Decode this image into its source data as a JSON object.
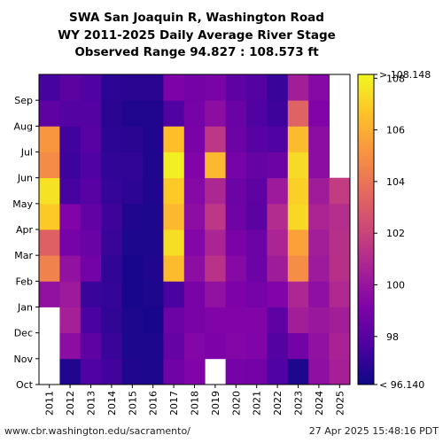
{
  "chart_data": {
    "type": "heatmap",
    "title_lines": [
      "SWA San Joaquin R, Washington Road",
      "WY 2011-2025 Daily Average River Stage",
      "Observed Range 94.827 : 108.573 ft"
    ],
    "x_categories": [
      "2011",
      "2012",
      "2013",
      "2014",
      "2015",
      "2016",
      "2017",
      "2018",
      "2019",
      "2020",
      "2021",
      "2022",
      "2023",
      "2024",
      "2025"
    ],
    "y_months": [
      "Oct",
      "Nov",
      "Dec",
      "Jan",
      "Feb",
      "Mar",
      "Apr",
      "May",
      "Jun",
      "Jul",
      "Aug",
      "Sep"
    ],
    "colorbar": {
      "min": 96.14,
      "max": 108.148,
      "ticks": [
        98,
        100,
        102,
        104,
        106,
        108
      ],
      "top_label": "> 108.148",
      "bottom_label": "< 96.140",
      "colormap": "plasma"
    },
    "monthly_mean_stage_ft": [
      [
        null,
        null,
        null,
        99.8,
        104.5,
        103.2,
        106.8,
        107.5,
        104.8,
        105.2,
        98.2,
        97.5
      ],
      [
        96.6,
        99.6,
        100.5,
        100.2,
        99.8,
        98.9,
        99.2,
        97.5,
        97.3,
        97.4,
        97.9,
        98.1
      ],
      [
        97.8,
        98.2,
        97.6,
        97.2,
        98.8,
        98.5,
        98.3,
        98.0,
        97.8,
        98.0,
        97.9,
        97.8
      ],
      [
        97.4,
        97.2,
        97.0,
        97.1,
        97.0,
        97.2,
        97.3,
        97.1,
        97.0,
        96.9,
        96.8,
        96.9
      ],
      [
        96.6,
        96.5,
        96.5,
        96.4,
        96.4,
        96.5,
        96.6,
        96.9,
        97.0,
        96.8,
        96.6,
        96.8
      ],
      [
        96.5,
        96.5,
        96.4,
        96.5,
        96.6,
        96.5,
        96.5,
        96.6,
        96.6,
        96.6,
        96.6,
        96.8
      ],
      [
        98.7,
        98.4,
        98.6,
        97.6,
        106.4,
        107.4,
        106.3,
        106.8,
        107.9,
        106.5,
        97.8,
        99.1
      ],
      [
        99.2,
        99.3,
        99.0,
        99.0,
        99.6,
        99.3,
        99.6,
        99.4,
        99.2,
        99.0,
        98.9,
        98.8
      ],
      [
        null,
        99.1,
        99.2,
        99.8,
        101.3,
        100.7,
        101.5,
        100.8,
        106.3,
        101.5,
        99.6,
        99.0
      ],
      [
        98.9,
        99.3,
        99.2,
        99.1,
        99.4,
        99.0,
        98.7,
        98.6,
        98.9,
        98.6,
        98.5,
        98.2
      ],
      [
        98.8,
        99.2,
        99.2,
        98.9,
        98.6,
        98.6,
        98.1,
        98.2,
        98.4,
        98.0,
        97.8,
        97.9
      ],
      [
        97.8,
        97.9,
        98.2,
        99.2,
        100.3,
        100.7,
        101.0,
        100.2,
        98.6,
        97.8,
        97.3,
        97.2
      ],
      [
        96.5,
        98.8,
        100.4,
        100.8,
        104.9,
        105.6,
        107.2,
        107.0,
        107.3,
        106.4,
        103.3,
        100.4
      ],
      [
        99.7,
        99.8,
        100.1,
        99.7,
        100.2,
        100.4,
        100.7,
        100.3,
        99.6,
        99.6,
        99.2,
        99.4
      ],
      [
        100.5,
        100.6,
        100.4,
        100.9,
        101.2,
        101.2,
        101.1,
        101.7,
        null,
        null,
        null,
        null
      ]
    ]
  },
  "footer": {
    "source": "www.cbr.washington.edu/sacramento/",
    "timestamp": "27 Apr 2025 15:48:16 PDT"
  }
}
